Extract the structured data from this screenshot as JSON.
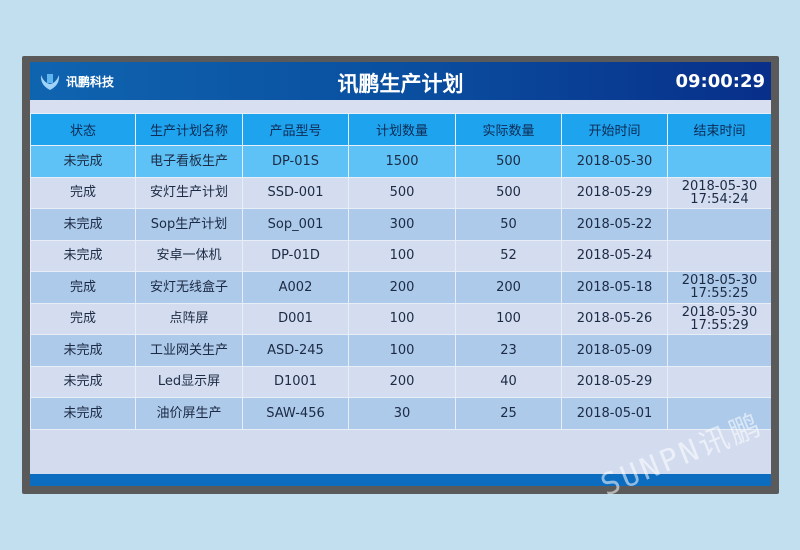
{
  "header": {
    "logo_text": "讯鹏科技",
    "title": "讯鹏生产计划",
    "clock": "09:00:29"
  },
  "table": {
    "columns": [
      "状态",
      "生产计划名称",
      "产品型号",
      "计划数量",
      "实际数量",
      "开始时间",
      "结束时间"
    ],
    "rows": [
      [
        "未完成",
        "电子看板生产",
        "DP-01S",
        "1500",
        "500",
        "2018-05-30",
        ""
      ],
      [
        "完成",
        "安灯生产计划",
        "SSD-001",
        "500",
        "500",
        "2018-05-29",
        "2018-05-30 17:54:24"
      ],
      [
        "未完成",
        "Sop生产计划",
        "Sop_001",
        "300",
        "50",
        "2018-05-22",
        ""
      ],
      [
        "未完成",
        "安卓一体机",
        "DP-01D",
        "100",
        "52",
        "2018-05-24",
        ""
      ],
      [
        "完成",
        "安灯无线盒子",
        "A002",
        "200",
        "200",
        "2018-05-18",
        "2018-05-30 17:55:25"
      ],
      [
        "完成",
        "点阵屏",
        "D001",
        "100",
        "100",
        "2018-05-26",
        "2018-05-30 17:55:29"
      ],
      [
        "未完成",
        "工业网关生产",
        "ASD-245",
        "100",
        "23",
        "2018-05-09",
        ""
      ],
      [
        "未完成",
        "Led显示屏",
        "D1001",
        "200",
        "40",
        "2018-05-29",
        ""
      ],
      [
        "未完成",
        "油价屏生产",
        "SAW-456",
        "30",
        "25",
        "2018-05-01",
        ""
      ]
    ]
  },
  "watermark": "SUNPN讯鹏"
}
